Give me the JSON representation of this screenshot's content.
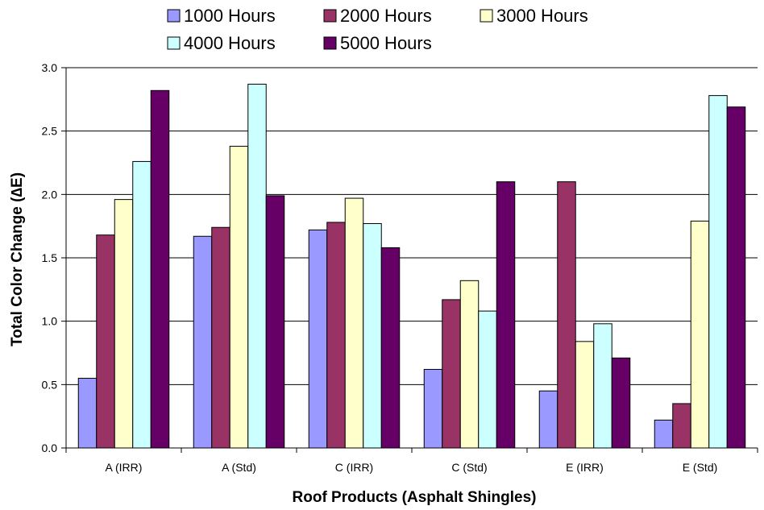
{
  "chart_data": {
    "type": "bar",
    "title": "",
    "xlabel": "Roof Products (Asphalt Shingles)",
    "ylabel": "Total Color Change (∆E)",
    "categories": [
      "A (IRR)",
      "A (Std)",
      "C (IRR)",
      "C (Std)",
      "E (IRR)",
      "E (Std)"
    ],
    "ylim": [
      0,
      3.0
    ],
    "yticks": [
      "0.0",
      "0.5",
      "1.0",
      "1.5",
      "2.0",
      "2.5",
      "3.0"
    ],
    "grid": true,
    "legend_position": "top",
    "series": [
      {
        "name": "1000 Hours",
        "color": "#9999ff",
        "values": [
          0.55,
          1.67,
          1.72,
          0.62,
          0.45,
          0.22
        ]
      },
      {
        "name": "2000 Hours",
        "color": "#993366",
        "values": [
          1.68,
          1.74,
          1.78,
          1.17,
          2.1,
          0.35
        ]
      },
      {
        "name": "3000 Hours",
        "color": "#ffffcc",
        "values": [
          1.96,
          2.38,
          1.97,
          1.32,
          0.84,
          1.79
        ]
      },
      {
        "name": "4000 Hours",
        "color": "#ccffff",
        "values": [
          2.26,
          2.87,
          1.77,
          1.08,
          0.98,
          2.78
        ]
      },
      {
        "name": "5000 Hours",
        "color": "#660066",
        "values": [
          2.82,
          1.99,
          1.58,
          2.1,
          0.71,
          2.69
        ]
      }
    ]
  }
}
